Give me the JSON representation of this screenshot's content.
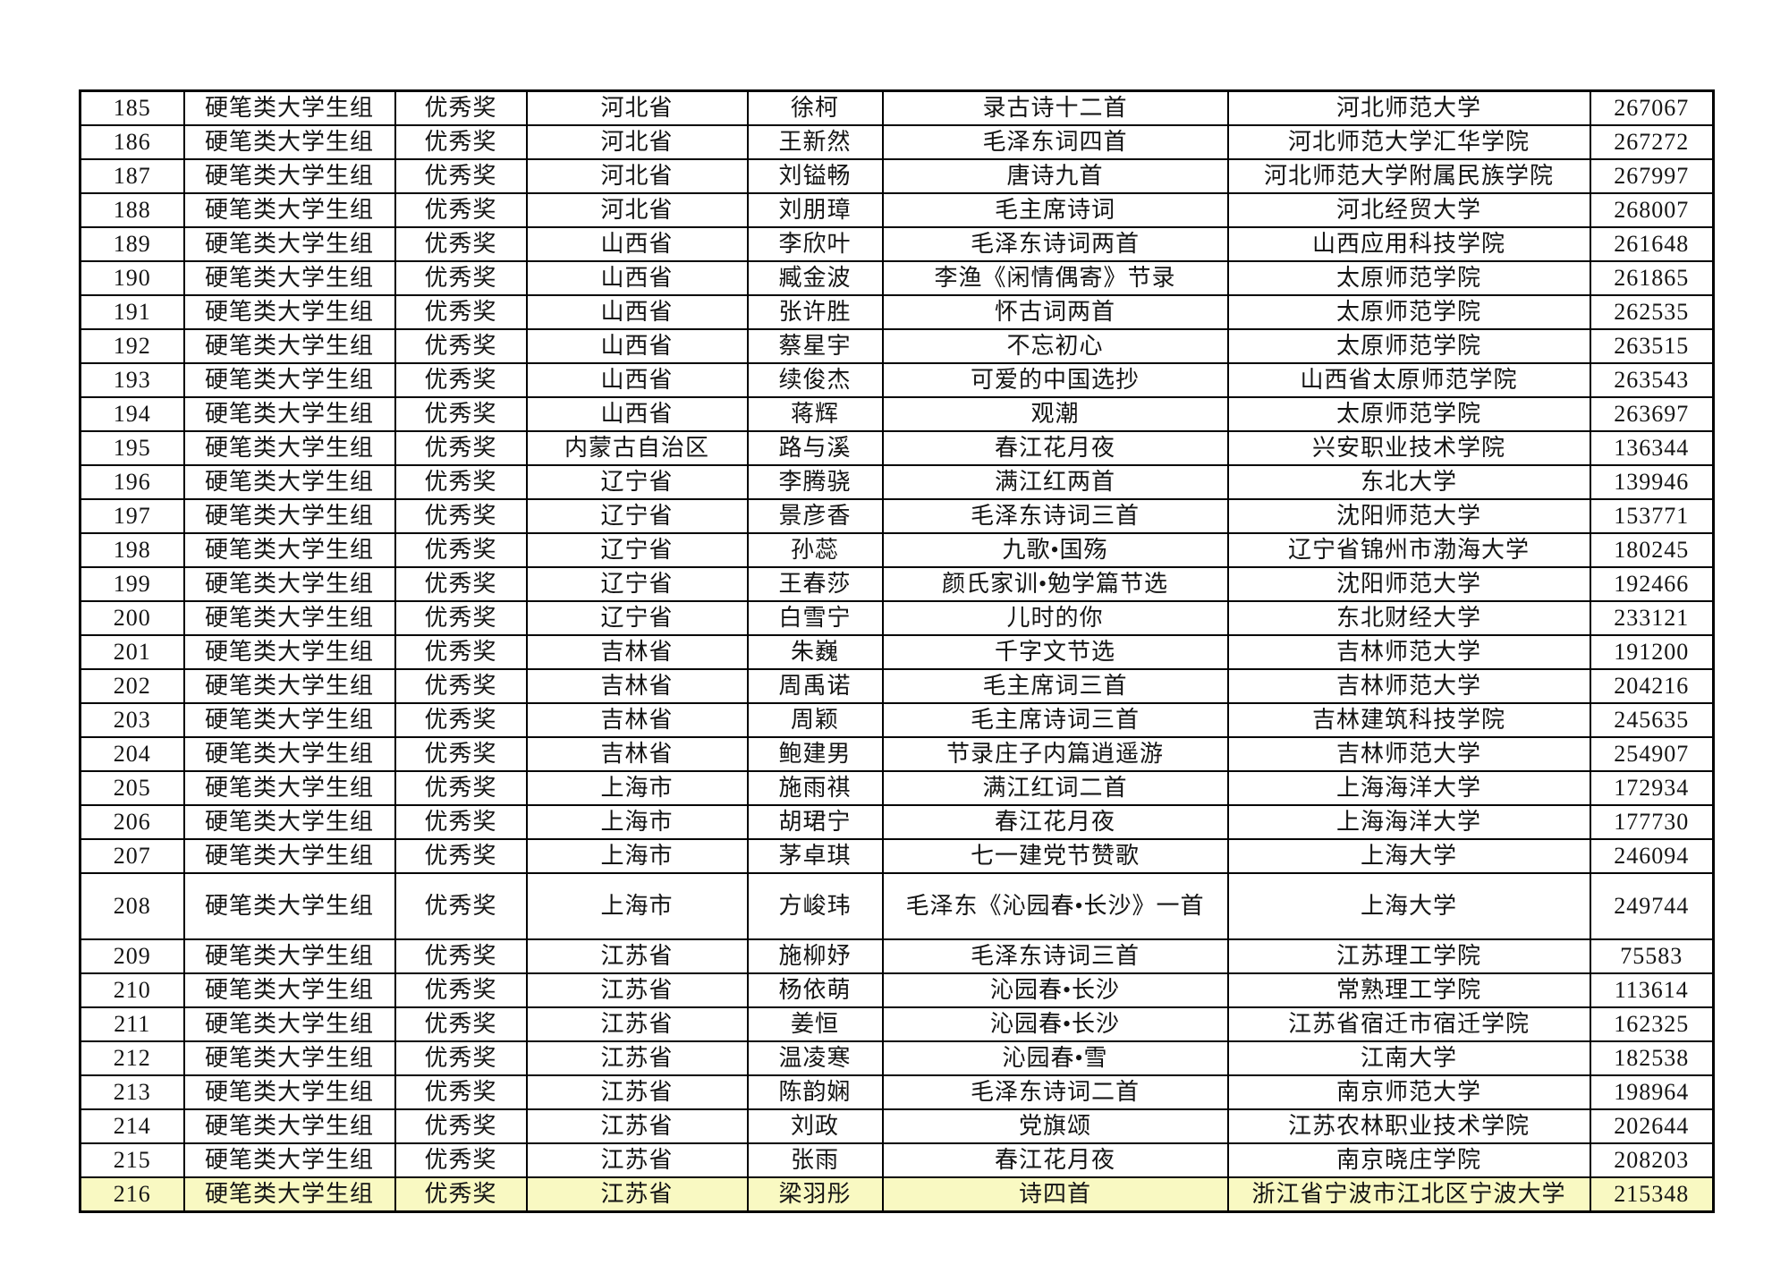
{
  "colors": {
    "background": "#ffffff",
    "border": "#000000",
    "text": "#141414",
    "row_highlight": "#f9f9c2"
  },
  "table": {
    "highlighted_row_no": "216",
    "tall_row_no": "208",
    "rows": [
      [
        "185",
        "硬笔类大学生组",
        "优秀奖",
        "河北省",
        "徐柯",
        "录古诗十二首",
        "河北师范大学",
        "267067"
      ],
      [
        "186",
        "硬笔类大学生组",
        "优秀奖",
        "河北省",
        "王新然",
        "毛泽东词四首",
        "河北师范大学汇华学院",
        "267272"
      ],
      [
        "187",
        "硬笔类大学生组",
        "优秀奖",
        "河北省",
        "刘镒畅",
        "唐诗九首",
        "河北师范大学附属民族学院",
        "267997"
      ],
      [
        "188",
        "硬笔类大学生组",
        "优秀奖",
        "河北省",
        "刘朋璋",
        "毛主席诗词",
        "河北经贸大学",
        "268007"
      ],
      [
        "189",
        "硬笔类大学生组",
        "优秀奖",
        "山西省",
        "李欣叶",
        "毛泽东诗词两首",
        "山西应用科技学院",
        "261648"
      ],
      [
        "190",
        "硬笔类大学生组",
        "优秀奖",
        "山西省",
        "臧金波",
        "李渔《闲情偶寄》节录",
        "太原师范学院",
        "261865"
      ],
      [
        "191",
        "硬笔类大学生组",
        "优秀奖",
        "山西省",
        "张许胜",
        "怀古词两首",
        "太原师范学院",
        "262535"
      ],
      [
        "192",
        "硬笔类大学生组",
        "优秀奖",
        "山西省",
        "蔡星宇",
        "不忘初心",
        "太原师范学院",
        "263515"
      ],
      [
        "193",
        "硬笔类大学生组",
        "优秀奖",
        "山西省",
        "续俊杰",
        "可爱的中国选抄",
        "山西省太原师范学院",
        "263543"
      ],
      [
        "194",
        "硬笔类大学生组",
        "优秀奖",
        "山西省",
        "蒋辉",
        "观潮",
        "太原师范学院",
        "263697"
      ],
      [
        "195",
        "硬笔类大学生组",
        "优秀奖",
        "内蒙古自治区",
        "路与溪",
        "春江花月夜",
        "兴安职业技术学院",
        "136344"
      ],
      [
        "196",
        "硬笔类大学生组",
        "优秀奖",
        "辽宁省",
        "李腾骁",
        "满江红两首",
        "东北大学",
        "139946"
      ],
      [
        "197",
        "硬笔类大学生组",
        "优秀奖",
        "辽宁省",
        "景彦香",
        "毛泽东诗词三首",
        "沈阳师范大学",
        "153771"
      ],
      [
        "198",
        "硬笔类大学生组",
        "优秀奖",
        "辽宁省",
        "孙蕊",
        "九歌•国殇",
        "辽宁省锦州市渤海大学",
        "180245"
      ],
      [
        "199",
        "硬笔类大学生组",
        "优秀奖",
        "辽宁省",
        "王春莎",
        "颜氏家训•勉学篇节选",
        "沈阳师范大学",
        "192466"
      ],
      [
        "200",
        "硬笔类大学生组",
        "优秀奖",
        "辽宁省",
        "白雪宁",
        "儿时的你",
        "东北财经大学",
        "233121"
      ],
      [
        "201",
        "硬笔类大学生组",
        "优秀奖",
        "吉林省",
        "朱巍",
        "千字文节选",
        "吉林师范大学",
        "191200"
      ],
      [
        "202",
        "硬笔类大学生组",
        "优秀奖",
        "吉林省",
        "周禹诺",
        "毛主席词三首",
        "吉林师范大学",
        "204216"
      ],
      [
        "203",
        "硬笔类大学生组",
        "优秀奖",
        "吉林省",
        "周颖",
        "毛主席诗词三首",
        "吉林建筑科技学院",
        "245635"
      ],
      [
        "204",
        "硬笔类大学生组",
        "优秀奖",
        "吉林省",
        "鲍建男",
        "节录庄子内篇逍遥游",
        "吉林师范大学",
        "254907"
      ],
      [
        "205",
        "硬笔类大学生组",
        "优秀奖",
        "上海市",
        "施雨祺",
        "满江红词二首",
        "上海海洋大学",
        "172934"
      ],
      [
        "206",
        "硬笔类大学生组",
        "优秀奖",
        "上海市",
        "胡珺宁",
        "春江花月夜",
        "上海海洋大学",
        "177730"
      ],
      [
        "207",
        "硬笔类大学生组",
        "优秀奖",
        "上海市",
        "茅卓琪",
        "七一建党节赞歌",
        "上海大学",
        "246094"
      ],
      [
        "208",
        "硬笔类大学生组",
        "优秀奖",
        "上海市",
        "方峻玮",
        "毛泽东《沁园春•长沙》一首",
        "上海大学",
        "249744"
      ],
      [
        "209",
        "硬笔类大学生组",
        "优秀奖",
        "江苏省",
        "施柳妤",
        "毛泽东诗词三首",
        "江苏理工学院",
        "75583"
      ],
      [
        "210",
        "硬笔类大学生组",
        "优秀奖",
        "江苏省",
        "杨依萌",
        "沁园春•长沙",
        "常熟理工学院",
        "113614"
      ],
      [
        "211",
        "硬笔类大学生组",
        "优秀奖",
        "江苏省",
        "姜恒",
        "沁园春•长沙",
        "江苏省宿迁市宿迁学院",
        "162325"
      ],
      [
        "212",
        "硬笔类大学生组",
        "优秀奖",
        "江苏省",
        "温凌寒",
        "沁园春•雪",
        "江南大学",
        "182538"
      ],
      [
        "213",
        "硬笔类大学生组",
        "优秀奖",
        "江苏省",
        "陈韵娴",
        "毛泽东诗词二首",
        "南京师范大学",
        "198964"
      ],
      [
        "214",
        "硬笔类大学生组",
        "优秀奖",
        "江苏省",
        "刘政",
        "党旗颂",
        "江苏农林职业技术学院",
        "202644"
      ],
      [
        "215",
        "硬笔类大学生组",
        "优秀奖",
        "江苏省",
        "张雨",
        "春江花月夜",
        "南京晓庄学院",
        "208203"
      ],
      [
        "216",
        "硬笔类大学生组",
        "优秀奖",
        "江苏省",
        "梁羽彤",
        "诗四首",
        "浙江省宁波市江北区宁波大学",
        "215348"
      ]
    ]
  }
}
